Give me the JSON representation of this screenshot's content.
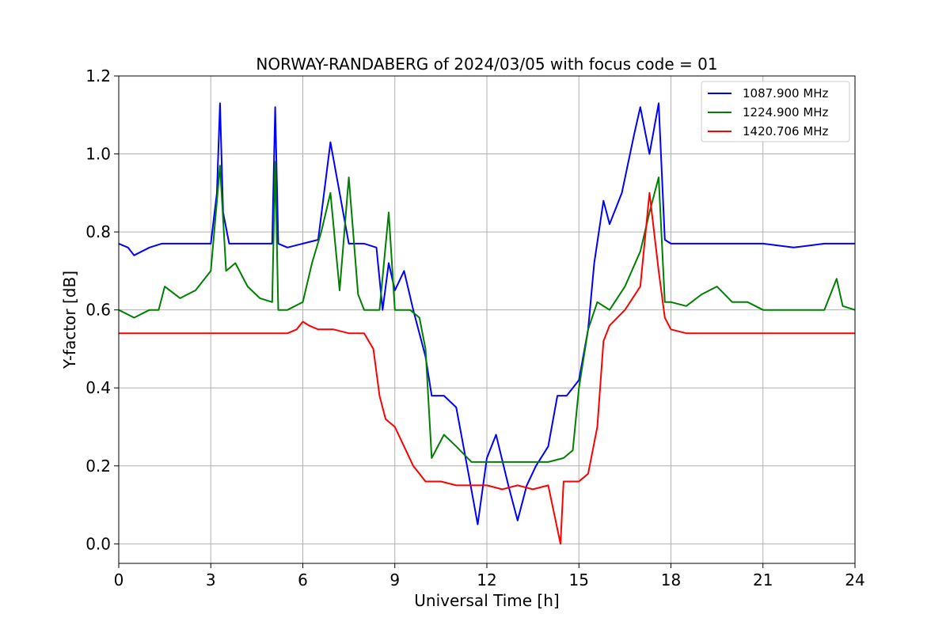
{
  "chart_data": {
    "type": "line",
    "title": "NORWAY-RANDABERG of 2024/03/05 with focus code = 01",
    "xlabel": "Universal Time [h]",
    "ylabel": "Y-factor [dB]",
    "xlim": [
      0,
      24
    ],
    "ylim": [
      -0.05,
      1.2
    ],
    "xticks": [
      0,
      3,
      6,
      9,
      12,
      15,
      18,
      21,
      24
    ],
    "yticks": [
      0.0,
      0.2,
      0.4,
      0.6,
      0.8,
      1.0,
      1.2
    ],
    "xtick_labels": [
      "0",
      "3",
      "6",
      "9",
      "12",
      "15",
      "18",
      "21",
      "24"
    ],
    "ytick_labels": [
      "0.0",
      "0.2",
      "0.4",
      "0.6",
      "0.8",
      "1.0",
      "1.2"
    ],
    "grid": true,
    "legend_position": "top-right",
    "series": [
      {
        "name": "1087.900 MHz",
        "color": "#0000ff",
        "x": [
          0,
          0.3,
          0.5,
          1.0,
          1.4,
          2.0,
          2.5,
          3.0,
          3.2,
          3.3,
          3.4,
          3.6,
          4.0,
          4.5,
          5.0,
          5.1,
          5.2,
          5.5,
          6.0,
          6.5,
          6.9,
          7.5,
          8.0,
          8.4,
          8.6,
          8.8,
          9.0,
          9.3,
          9.6,
          10.0,
          10.2,
          10.6,
          11.0,
          11.4,
          11.7,
          12.0,
          12.3,
          12.7,
          13.0,
          13.3,
          13.6,
          14.0,
          14.3,
          14.6,
          15.0,
          15.3,
          15.5,
          15.8,
          16.0,
          16.4,
          16.8,
          17.0,
          17.3,
          17.6,
          17.8,
          18.0,
          18.5,
          19.0,
          20.0,
          21.0,
          22.0,
          23.0,
          24.0
        ],
        "y": [
          0.77,
          0.76,
          0.74,
          0.76,
          0.77,
          0.77,
          0.77,
          0.77,
          0.9,
          1.13,
          0.85,
          0.77,
          0.77,
          0.77,
          0.77,
          1.12,
          0.77,
          0.76,
          0.77,
          0.78,
          1.03,
          0.77,
          0.77,
          0.76,
          0.6,
          0.72,
          0.65,
          0.7,
          0.6,
          0.48,
          0.38,
          0.38,
          0.35,
          0.18,
          0.05,
          0.22,
          0.28,
          0.15,
          0.06,
          0.15,
          0.2,
          0.25,
          0.38,
          0.38,
          0.42,
          0.55,
          0.72,
          0.88,
          0.82,
          0.9,
          1.05,
          1.12,
          1.0,
          1.13,
          0.78,
          0.77,
          0.77,
          0.77,
          0.77,
          0.77,
          0.76,
          0.77,
          0.77
        ]
      },
      {
        "name": "1224.900 MHz",
        "color": "#008000",
        "x": [
          0,
          0.5,
          1.0,
          1.3,
          1.5,
          2.0,
          2.5,
          3.0,
          3.3,
          3.5,
          3.8,
          4.2,
          4.6,
          5.0,
          5.1,
          5.2,
          5.5,
          6.0,
          6.3,
          6.6,
          6.9,
          7.2,
          7.5,
          7.8,
          8.0,
          8.5,
          8.8,
          9.0,
          9.5,
          9.8,
          10.0,
          10.2,
          10.6,
          11.0,
          11.5,
          12.0,
          12.5,
          13.0,
          13.5,
          14.0,
          14.5,
          14.8,
          15.0,
          15.3,
          15.6,
          16.0,
          16.5,
          17.0,
          17.3,
          17.6,
          17.8,
          18.0,
          18.5,
          19.0,
          19.5,
          20.0,
          20.5,
          21.0,
          22.0,
          23.0,
          23.4,
          23.6,
          24.0
        ],
        "y": [
          0.6,
          0.58,
          0.6,
          0.6,
          0.66,
          0.63,
          0.65,
          0.7,
          0.97,
          0.7,
          0.72,
          0.66,
          0.63,
          0.62,
          0.98,
          0.6,
          0.6,
          0.62,
          0.72,
          0.8,
          0.9,
          0.65,
          0.94,
          0.64,
          0.6,
          0.6,
          0.85,
          0.6,
          0.6,
          0.58,
          0.5,
          0.22,
          0.28,
          0.25,
          0.21,
          0.21,
          0.21,
          0.21,
          0.21,
          0.21,
          0.22,
          0.24,
          0.4,
          0.55,
          0.62,
          0.6,
          0.66,
          0.75,
          0.85,
          0.94,
          0.62,
          0.62,
          0.61,
          0.64,
          0.66,
          0.62,
          0.62,
          0.6,
          0.6,
          0.6,
          0.68,
          0.61,
          0.6
        ]
      },
      {
        "name": "1420.706 MHz",
        "color": "#ff0000",
        "x": [
          0,
          0.5,
          1.0,
          2.0,
          3.0,
          4.0,
          5.0,
          5.5,
          5.8,
          6.0,
          6.2,
          6.5,
          7.0,
          7.5,
          8.0,
          8.3,
          8.5,
          8.7,
          9.0,
          9.3,
          9.6,
          10.0,
          10.5,
          11.0,
          11.5,
          12.0,
          12.5,
          13.0,
          13.5,
          14.0,
          14.4,
          14.5,
          15.0,
          15.3,
          15.6,
          15.8,
          16.0,
          16.5,
          17.0,
          17.3,
          17.6,
          17.8,
          18.0,
          18.5,
          19.0,
          19.5,
          20.0,
          21.0,
          22.0,
          23.0,
          24.0
        ],
        "y": [
          0.54,
          0.54,
          0.54,
          0.54,
          0.54,
          0.54,
          0.54,
          0.54,
          0.55,
          0.57,
          0.56,
          0.55,
          0.55,
          0.54,
          0.54,
          0.5,
          0.38,
          0.32,
          0.3,
          0.25,
          0.2,
          0.16,
          0.16,
          0.15,
          0.15,
          0.15,
          0.14,
          0.15,
          0.14,
          0.15,
          0.0,
          0.16,
          0.16,
          0.18,
          0.3,
          0.52,
          0.56,
          0.6,
          0.66,
          0.9,
          0.7,
          0.58,
          0.55,
          0.54,
          0.54,
          0.54,
          0.54,
          0.54,
          0.54,
          0.54,
          0.54
        ]
      }
    ]
  }
}
